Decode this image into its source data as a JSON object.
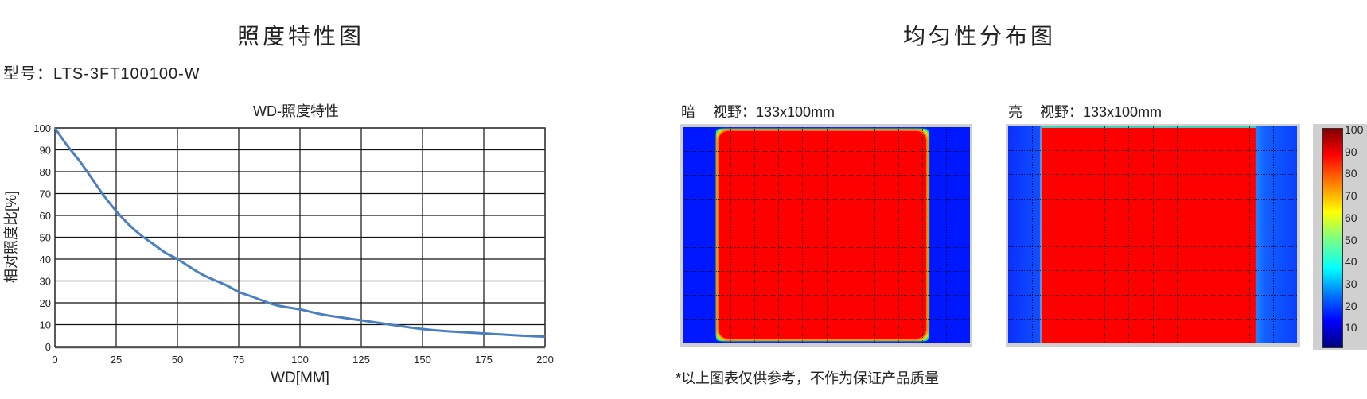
{
  "left_title": "照度特性图",
  "model_label": "型号：LTS-3FT100100-W",
  "right_title": "均匀性分布图",
  "chart_data": [
    {
      "type": "line",
      "title": "WD-照度特性",
      "xlabel": "WD[MM]",
      "ylabel": "相对照度比[%]",
      "xlim": [
        0,
        200
      ],
      "ylim": [
        0,
        100
      ],
      "xticks": [
        0,
        25,
        50,
        75,
        100,
        125,
        150,
        175,
        200
      ],
      "yticks": [
        0,
        10,
        20,
        30,
        40,
        50,
        60,
        70,
        80,
        90,
        100
      ],
      "grid": true,
      "line_color": "#4a7fc1",
      "x": [
        0,
        5,
        10,
        15,
        20,
        25,
        30,
        35,
        40,
        45,
        50,
        60,
        70,
        75,
        80,
        90,
        100,
        110,
        125,
        140,
        150,
        160,
        175,
        190,
        200
      ],
      "y": [
        100,
        92,
        85,
        77,
        69,
        62,
        56,
        51,
        47,
        43,
        40,
        33,
        28,
        25,
        23,
        19,
        17,
        14.5,
        12,
        9.5,
        8,
        7,
        6,
        5,
        4.5
      ]
    },
    {
      "type": "heatmap",
      "label_state": "暗",
      "label_fov": "视野：133x100mm",
      "description_colors": {
        "background": "#0018ff",
        "field": "#ff0000"
      }
    },
    {
      "type": "heatmap",
      "label_state": "亮",
      "label_fov": "视野：133x100mm",
      "description_colors": {
        "background": "#0a3cff",
        "field": "#ff0000"
      }
    },
    {
      "type": "colorbar",
      "colormap": "jet",
      "range": [
        0,
        100
      ],
      "ticks": [
        "100",
        "90",
        "80",
        "70",
        "60",
        "50",
        "40",
        "30",
        "20",
        "10"
      ]
    }
  ],
  "footnote": "*以上图表仅供参考，不作为保证产品质量"
}
